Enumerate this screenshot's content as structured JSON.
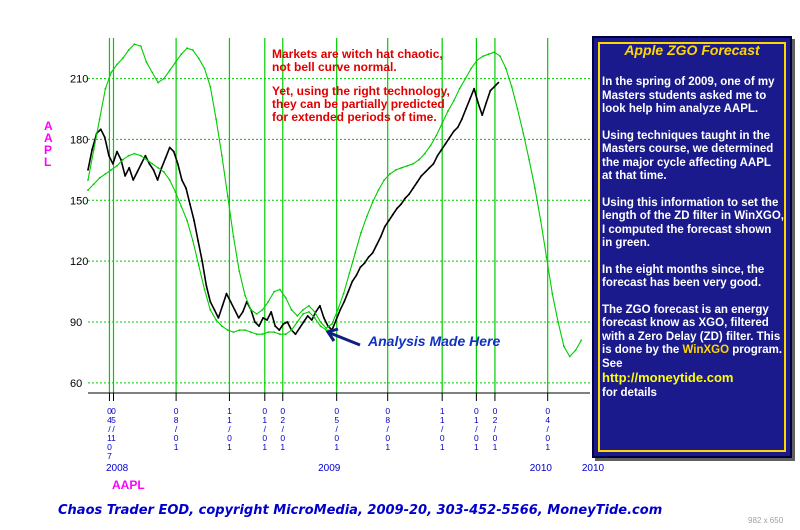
{
  "annotations": {
    "line1": "Markets are witch hat chaotic,",
    "line2": "not bell curve normal.",
    "line3": "Yet, using the right technology,",
    "line4": "they can be partially predicted",
    "line5": "for extended periods of time."
  },
  "analysis_label": "Analysis  Made Here",
  "ylabel": "AAPL",
  "ylabel_chars": [
    "A",
    "A",
    "P",
    "L"
  ],
  "symbol_label": "AAPL",
  "footer": "Chaos Trader EOD, copyright MicroMedia, 2009-20, 303-452-5566, MoneyTide.com",
  "image_size_text": "982 x 650",
  "panel": {
    "title": "Apple ZGO Forecast",
    "p1": "In the spring of 2009, one of my Masters students asked me to look help him analyze AAPL.",
    "p2": "Using techniques taught in the Masters course, we determined the major cycle affecting AAPL at that time.",
    "p3": "Using this information to set the length of the ZD filter in WinXGO, I computed the forecast shown in green.",
    "p4": "In the eight months since, the forecast has been very good.",
    "p5a": "The ZGO forecast is an energy forecast know as XGO, filtered with a Zero Delay (ZD) filter.  This is done by the ",
    "p5_link": "WinXGO",
    "p5b": " program.  See",
    "url": "http://moneytide.com",
    "p6": "for details"
  },
  "colors": {
    "price": "#000000",
    "forecast": "#00cc00",
    "grid": "#00cc00",
    "annotation": "#e00000",
    "axis_label": "#ff00ff",
    "panel_bg": "#1a1a8c",
    "panel_title": "#ffd700",
    "footer": "#0000cc"
  },
  "chart_data": {
    "type": "line",
    "ylabel": "AAPL",
    "ylim": [
      55,
      230
    ],
    "yticks": [
      60,
      90,
      120,
      150,
      180,
      210
    ],
    "x_start": "2007-12-01",
    "x_end": "2010-04-15",
    "date_markers": [
      {
        "date": "2008-01-07",
        "label": [
          "0",
          "4",
          "/",
          "1",
          "0",
          "7"
        ]
      },
      {
        "date": "2008-01-14",
        "label": [
          "0",
          "5",
          "/",
          "1"
        ]
      },
      {
        "date": "2008-05-01",
        "label": [
          "0",
          "8",
          "/",
          "0",
          "1"
        ]
      },
      {
        "date": "2008-08-01",
        "label": [
          "1",
          "1",
          "/",
          "0",
          "1"
        ]
      },
      {
        "date": "2008-10-01",
        "label": [
          "0",
          "1",
          "/",
          "0",
          "1"
        ]
      },
      {
        "date": "2008-11-01",
        "label": [
          "0",
          "2",
          "/",
          "0",
          "1"
        ]
      },
      {
        "date": "2009-02-02",
        "label": [
          "0",
          "5",
          "/",
          "0",
          "1"
        ]
      },
      {
        "date": "2009-05-01",
        "label": [
          "0",
          "8",
          "/",
          "0",
          "1"
        ]
      },
      {
        "date": "2009-08-03",
        "label": [
          "1",
          "1",
          "/",
          "0",
          "1"
        ]
      },
      {
        "date": "2009-10-01",
        "label": [
          "0",
          "1",
          "/",
          "0",
          "1"
        ]
      },
      {
        "date": "2009-11-02",
        "label": [
          "0",
          "2",
          "/",
          "0",
          "1"
        ]
      },
      {
        "date": "2010-02-01",
        "label": [
          "0",
          "4",
          "/",
          "0",
          "1"
        ]
      }
    ],
    "year_labels": [
      {
        "date": "2008-01-01",
        "label": "2008"
      },
      {
        "date": "2009-01-01",
        "label": "2009"
      },
      {
        "date": "2010-01-01",
        "label": "2010"
      },
      {
        "date": "2010-04-01",
        "label": "2010"
      }
    ],
    "analysis_date": "2009-01-20",
    "series": [
      {
        "name": "AAPL",
        "points": [
          [
            "2007-12-01",
            165
          ],
          [
            "2007-12-08",
            175
          ],
          [
            "2007-12-16",
            183
          ],
          [
            "2007-12-23",
            185
          ],
          [
            "2007-12-30",
            181
          ],
          [
            "2008-01-06",
            172
          ],
          [
            "2008-01-13",
            168
          ],
          [
            "2008-01-20",
            174
          ],
          [
            "2008-01-27",
            170
          ],
          [
            "2008-02-03",
            162
          ],
          [
            "2008-02-10",
            166
          ],
          [
            "2008-02-17",
            160
          ],
          [
            "2008-02-24",
            164
          ],
          [
            "2008-03-02",
            168
          ],
          [
            "2008-03-09",
            172
          ],
          [
            "2008-03-16",
            168
          ],
          [
            "2008-03-23",
            165
          ],
          [
            "2008-03-30",
            160
          ],
          [
            "2008-04-06",
            166
          ],
          [
            "2008-04-13",
            171
          ],
          [
            "2008-04-20",
            176
          ],
          [
            "2008-04-27",
            174
          ],
          [
            "2008-05-04",
            168
          ],
          [
            "2008-05-11",
            160
          ],
          [
            "2008-05-18",
            156
          ],
          [
            "2008-05-25",
            148
          ],
          [
            "2008-06-01",
            140
          ],
          [
            "2008-06-08",
            130
          ],
          [
            "2008-06-15",
            120
          ],
          [
            "2008-06-22",
            108
          ],
          [
            "2008-06-29",
            100
          ],
          [
            "2008-07-06",
            96
          ],
          [
            "2008-07-13",
            92
          ],
          [
            "2008-07-20",
            98
          ],
          [
            "2008-07-27",
            104
          ],
          [
            "2008-08-03",
            100
          ],
          [
            "2008-08-10",
            96
          ],
          [
            "2008-08-17",
            92
          ],
          [
            "2008-08-24",
            95
          ],
          [
            "2008-08-31",
            100
          ],
          [
            "2008-09-07",
            96
          ],
          [
            "2008-09-14",
            90
          ],
          [
            "2008-09-21",
            88
          ],
          [
            "2008-09-28",
            92
          ],
          [
            "2008-10-05",
            91
          ],
          [
            "2008-10-12",
            95
          ],
          [
            "2008-10-19",
            88
          ],
          [
            "2008-10-26",
            86
          ],
          [
            "2008-11-02",
            89
          ],
          [
            "2008-11-09",
            90
          ],
          [
            "2008-11-16",
            86
          ],
          [
            "2008-11-23",
            84
          ],
          [
            "2008-11-30",
            87
          ],
          [
            "2008-12-07",
            90
          ],
          [
            "2008-12-14",
            93
          ],
          [
            "2008-12-21",
            91
          ],
          [
            "2008-12-28",
            95
          ],
          [
            "2009-01-04",
            98
          ],
          [
            "2009-01-11",
            92
          ],
          [
            "2009-01-18",
            88
          ],
          [
            "2009-01-25",
            86
          ],
          [
            "2009-02-01",
            91
          ],
          [
            "2009-02-08",
            96
          ],
          [
            "2009-02-15",
            100
          ],
          [
            "2009-02-22",
            105
          ],
          [
            "2009-03-01",
            110
          ],
          [
            "2009-03-08",
            113
          ],
          [
            "2009-03-15",
            117
          ],
          [
            "2009-03-22",
            119
          ],
          [
            "2009-03-29",
            122
          ],
          [
            "2009-04-05",
            124
          ],
          [
            "2009-04-12",
            128
          ],
          [
            "2009-04-19",
            132
          ],
          [
            "2009-04-26",
            137
          ],
          [
            "2009-05-03",
            140
          ],
          [
            "2009-05-10",
            143
          ],
          [
            "2009-05-17",
            146
          ],
          [
            "2009-05-24",
            148
          ],
          [
            "2009-05-31",
            151
          ],
          [
            "2009-06-07",
            153
          ],
          [
            "2009-06-14",
            156
          ],
          [
            "2009-06-21",
            159
          ],
          [
            "2009-06-28",
            162
          ],
          [
            "2009-07-05",
            164
          ],
          [
            "2009-07-12",
            166
          ],
          [
            "2009-07-19",
            168
          ],
          [
            "2009-07-26",
            172
          ],
          [
            "2009-08-02",
            175
          ],
          [
            "2009-08-09",
            178
          ],
          [
            "2009-08-16",
            181
          ],
          [
            "2009-08-23",
            184
          ],
          [
            "2009-08-30",
            186
          ],
          [
            "2009-09-06",
            190
          ],
          [
            "2009-09-13",
            195
          ],
          [
            "2009-09-20",
            200
          ],
          [
            "2009-09-27",
            205
          ],
          [
            "2009-10-04",
            198
          ],
          [
            "2009-10-11",
            192
          ],
          [
            "2009-10-18",
            198
          ],
          [
            "2009-10-25",
            204
          ],
          [
            "2009-11-01",
            206
          ],
          [
            "2009-11-08",
            208
          ]
        ]
      },
      {
        "name": "ZGO forecast",
        "points": [
          [
            "2007-12-01",
            160
          ],
          [
            "2007-12-11",
            175
          ],
          [
            "2007-12-21",
            190
          ],
          [
            "2007-12-31",
            205
          ],
          [
            "2008-01-10",
            213
          ],
          [
            "2008-01-20",
            217
          ],
          [
            "2008-01-30",
            220
          ],
          [
            "2008-02-09",
            224
          ],
          [
            "2008-02-19",
            227
          ],
          [
            "2008-03-01",
            226
          ],
          [
            "2008-03-11",
            218
          ],
          [
            "2008-03-21",
            213
          ],
          [
            "2008-03-31",
            208
          ],
          [
            "2008-04-10",
            210
          ],
          [
            "2008-04-20",
            214
          ],
          [
            "2008-04-30",
            218
          ],
          [
            "2008-05-10",
            222
          ],
          [
            "2008-05-20",
            225
          ],
          [
            "2008-05-30",
            224
          ],
          [
            "2008-06-09",
            220
          ],
          [
            "2008-06-19",
            215
          ],
          [
            "2008-06-29",
            206
          ],
          [
            "2008-07-09",
            190
          ],
          [
            "2008-07-19",
            172
          ],
          [
            "2008-07-29",
            152
          ],
          [
            "2008-08-08",
            132
          ],
          [
            "2008-08-18",
            115
          ],
          [
            "2008-08-28",
            103
          ],
          [
            "2008-09-07",
            96
          ],
          [
            "2008-09-17",
            94
          ],
          [
            "2008-09-27",
            96
          ],
          [
            "2008-10-07",
            100
          ],
          [
            "2008-10-17",
            105
          ],
          [
            "2008-10-27",
            106
          ],
          [
            "2008-11-06",
            102
          ],
          [
            "2008-11-16",
            96
          ],
          [
            "2008-11-26",
            93
          ],
          [
            "2008-12-06",
            96
          ],
          [
            "2008-12-16",
            98
          ],
          [
            "2008-12-26",
            95
          ],
          [
            "2009-01-05",
            90
          ],
          [
            "2009-01-15",
            87
          ],
          [
            "2009-01-25",
            89
          ],
          [
            "2009-02-04",
            96
          ],
          [
            "2009-02-14",
            104
          ],
          [
            "2009-02-24",
            114
          ],
          [
            "2009-03-06",
            124
          ],
          [
            "2009-03-16",
            134
          ],
          [
            "2009-03-26",
            142
          ],
          [
            "2009-04-05",
            149
          ],
          [
            "2009-04-15",
            155
          ],
          [
            "2009-04-25",
            160
          ],
          [
            "2009-05-05",
            163
          ],
          [
            "2009-05-15",
            165
          ],
          [
            "2009-05-25",
            166
          ],
          [
            "2009-06-04",
            167
          ],
          [
            "2009-06-14",
            168
          ],
          [
            "2009-06-24",
            170
          ],
          [
            "2009-07-04",
            173
          ],
          [
            "2009-07-14",
            177
          ],
          [
            "2009-07-24",
            182
          ],
          [
            "2009-08-03",
            188
          ],
          [
            "2009-08-13",
            194
          ],
          [
            "2009-08-23",
            199
          ],
          [
            "2009-09-02",
            205
          ],
          [
            "2009-09-12",
            210
          ],
          [
            "2009-09-22",
            215
          ],
          [
            "2009-10-02",
            219
          ],
          [
            "2009-10-12",
            221
          ],
          [
            "2009-10-22",
            222
          ],
          [
            "2009-11-01",
            223
          ],
          [
            "2009-11-11",
            221
          ],
          [
            "2009-11-21",
            215
          ],
          [
            "2009-12-01",
            206
          ],
          [
            "2009-12-11",
            195
          ],
          [
            "2009-12-21",
            183
          ],
          [
            "2009-12-31",
            170
          ],
          [
            "2010-01-10",
            156
          ],
          [
            "2010-01-20",
            140
          ],
          [
            "2010-01-30",
            122
          ],
          [
            "2010-02-09",
            104
          ],
          [
            "2010-02-19",
            90
          ],
          [
            "2010-03-01",
            78
          ],
          [
            "2010-03-11",
            73
          ],
          [
            "2010-03-21",
            76
          ],
          [
            "2010-03-31",
            81
          ]
        ]
      },
      {
        "name": "lower band",
        "points": [
          [
            "2007-12-01",
            155
          ],
          [
            "2007-12-11",
            158
          ],
          [
            "2007-12-21",
            161
          ],
          [
            "2007-12-31",
            163
          ],
          [
            "2008-01-10",
            165
          ],
          [
            "2008-01-20",
            167
          ],
          [
            "2008-01-30",
            170
          ],
          [
            "2008-02-09",
            172
          ],
          [
            "2008-02-19",
            173
          ],
          [
            "2008-03-01",
            172
          ],
          [
            "2008-03-11",
            170
          ],
          [
            "2008-03-21",
            168
          ],
          [
            "2008-03-31",
            166
          ],
          [
            "2008-04-10",
            164
          ],
          [
            "2008-04-20",
            160
          ],
          [
            "2008-04-30",
            154
          ],
          [
            "2008-05-10",
            147
          ],
          [
            "2008-05-20",
            140
          ],
          [
            "2008-05-30",
            130
          ],
          [
            "2008-06-09",
            118
          ],
          [
            "2008-06-19",
            106
          ],
          [
            "2008-06-29",
            96
          ],
          [
            "2008-07-09",
            91
          ],
          [
            "2008-07-19",
            88
          ],
          [
            "2008-07-29",
            86
          ],
          [
            "2008-08-08",
            85
          ],
          [
            "2008-08-18",
            86
          ],
          [
            "2008-08-28",
            86
          ],
          [
            "2008-09-07",
            85
          ],
          [
            "2008-09-17",
            84
          ],
          [
            "2008-09-27",
            84
          ],
          [
            "2008-10-07",
            85
          ],
          [
            "2008-10-17",
            85
          ],
          [
            "2008-10-27",
            84
          ],
          [
            "2008-11-06",
            84
          ],
          [
            "2008-11-16",
            86
          ],
          [
            "2008-11-26",
            90
          ],
          [
            "2008-12-06",
            94
          ],
          [
            "2008-12-16",
            95
          ],
          [
            "2008-12-26",
            92
          ],
          [
            "2009-01-05",
            88
          ],
          [
            "2009-01-15",
            86
          ],
          [
            "2009-01-25",
            86
          ]
        ]
      }
    ]
  }
}
